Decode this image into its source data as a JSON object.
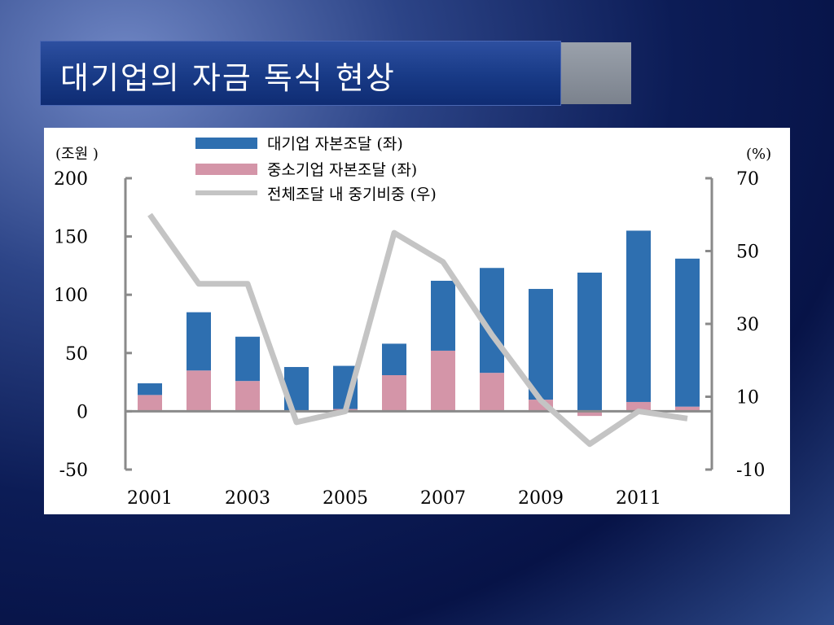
{
  "slide": {
    "title": "대기업의 자금 독식 현상"
  },
  "colors": {
    "large_bar": "#2e6fb0",
    "small_bar": "#d495a8",
    "share_line": "#c4c4c4",
    "axis": "#8a8a8a"
  },
  "chart_data": {
    "type": "bar",
    "title": "",
    "left_unit": "(조원 )",
    "right_unit": "(%)",
    "x": [
      2001,
      2002,
      2003,
      2004,
      2005,
      2006,
      2007,
      2008,
      2009,
      2010,
      2011,
      2012
    ],
    "x_tick_labels": [
      "2001",
      "2003",
      "2005",
      "2007",
      "2009",
      "2011"
    ],
    "y_left_ticks": [
      "200",
      "150",
      "100",
      "50",
      "0",
      "-50"
    ],
    "y_right_ticks": [
      "70",
      "50",
      "30",
      "10",
      "-10"
    ],
    "ylim_left": [
      -50,
      200
    ],
    "ylim_right": [
      -10,
      70
    ],
    "legend_position": "top-center",
    "series": [
      {
        "name": "대기업  자본조달 (좌)",
        "type": "stacked-bar",
        "axis": "left",
        "values": [
          10,
          50,
          38,
          38,
          37,
          27,
          60,
          90,
          95,
          119,
          147,
          127
        ]
      },
      {
        "name": "중소기업  자본조달 (좌)",
        "type": "stacked-bar",
        "axis": "left",
        "values": [
          14,
          35,
          26,
          0,
          2,
          31,
          52,
          33,
          10,
          -4,
          8,
          4
        ]
      },
      {
        "name": "전체조달 내 중기비중 (우)",
        "type": "line",
        "axis": "right",
        "values": [
          60,
          41,
          41,
          3,
          6,
          55,
          47,
          27,
          9,
          -3,
          6,
          4
        ]
      }
    ]
  }
}
